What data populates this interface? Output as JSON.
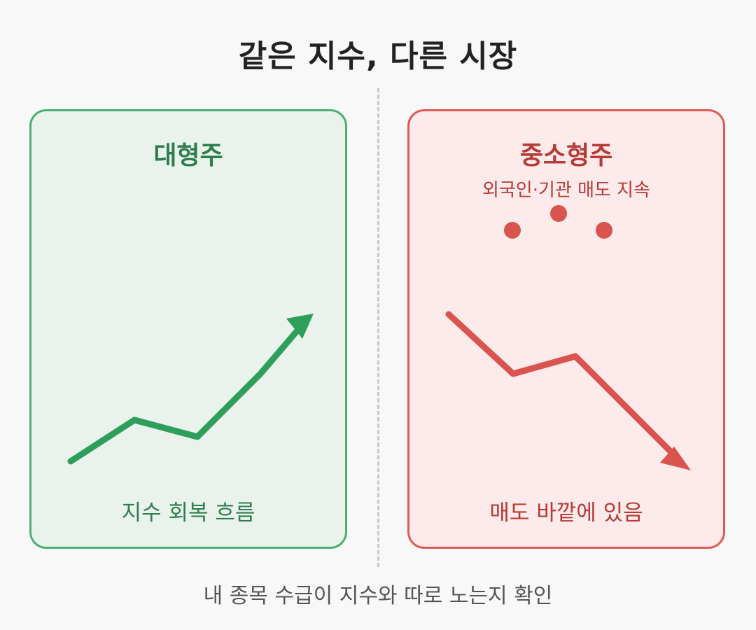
{
  "title": "같은 지수, 다른 시장",
  "left_panel": {
    "title": "대형주",
    "caption": "지수 회복 흐름",
    "trend": "up",
    "color": "#2e9e5b"
  },
  "right_panel": {
    "title": "중소형주",
    "subtitle": "외국인·기관 매도 지속",
    "caption": "매도 바깥에 있음",
    "trend": "down",
    "color": "#d9534f"
  },
  "footer": "내 종목 수급이 지수와 따로 노는지 확인"
}
